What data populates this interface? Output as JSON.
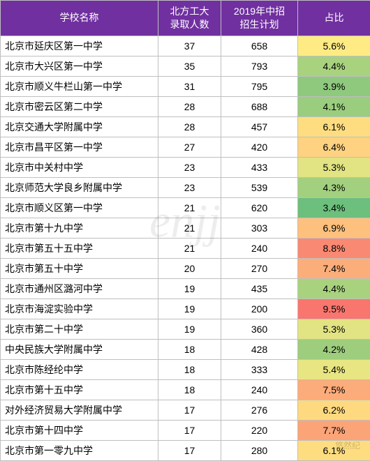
{
  "table": {
    "columns": [
      {
        "label": "学校名称",
        "class": "col-school"
      },
      {
        "label": "北方工大\n录取人数",
        "class": "col-admit"
      },
      {
        "label": "2019年中招\n招生计划",
        "class": "col-plan"
      },
      {
        "label": "占比",
        "class": "col-ratio"
      }
    ],
    "header_bg": "#7030a0",
    "header_color": "#ffffff",
    "border_color": "#bfbfbf",
    "rows": [
      {
        "school": "北京市延庆区第一中学",
        "admit": 37,
        "plan": 658,
        "ratio": "5.6%",
        "ratio_bg": "#ffeb84"
      },
      {
        "school": "北京市大兴区第一中学",
        "admit": 35,
        "plan": 793,
        "ratio": "4.4%",
        "ratio_bg": "#a9d27f"
      },
      {
        "school": "北京市顺义牛栏山第一中学",
        "admit": 31,
        "plan": 795,
        "ratio": "3.9%",
        "ratio_bg": "#8ec97d"
      },
      {
        "school": "北京市密云区第二中学",
        "admit": 28,
        "plan": 688,
        "ratio": "4.1%",
        "ratio_bg": "#9acd7e"
      },
      {
        "school": "北京交通大学附属中学",
        "admit": 28,
        "plan": 457,
        "ratio": "6.1%",
        "ratio_bg": "#fedd81"
      },
      {
        "school": "北京市昌平区第一中学",
        "admit": 27,
        "plan": 420,
        "ratio": "6.4%",
        "ratio_bg": "#fed280"
      },
      {
        "school": "北京市中关村中学",
        "admit": 23,
        "plan": 433,
        "ratio": "5.3%",
        "ratio_bg": "#e2e383"
      },
      {
        "school": "北京师范大学良乡附属中学",
        "admit": 23,
        "plan": 539,
        "ratio": "4.3%",
        "ratio_bg": "#a3d07f"
      },
      {
        "school": "北京市顺义区第一中学",
        "admit": 21,
        "plan": 620,
        "ratio": "3.4%",
        "ratio_bg": "#6cbf7c"
      },
      {
        "school": "北京市第十九中学",
        "admit": 21,
        "plan": 303,
        "ratio": "6.9%",
        "ratio_bg": "#fdc07d"
      },
      {
        "school": "北京市第五十五中学",
        "admit": 21,
        "plan": 240,
        "ratio": "8.8%",
        "ratio_bg": "#f98972"
      },
      {
        "school": "北京市第五十中学",
        "admit": 20,
        "plan": 270,
        "ratio": "7.4%",
        "ratio_bg": "#fcae7a"
      },
      {
        "school": "北京市通州区潞河中学",
        "admit": 19,
        "plan": 435,
        "ratio": "4.4%",
        "ratio_bg": "#a9d27f"
      },
      {
        "school": "北京市海淀实验中学",
        "admit": 19,
        "plan": 200,
        "ratio": "9.5%",
        "ratio_bg": "#f8766e"
      },
      {
        "school": "北京市第二十中学",
        "admit": 19,
        "plan": 360,
        "ratio": "5.3%",
        "ratio_bg": "#e2e383"
      },
      {
        "school": "中央民族大学附属中学",
        "admit": 18,
        "plan": 428,
        "ratio": "4.2%",
        "ratio_bg": "#9ecd7e"
      },
      {
        "school": "北京市陈经纶中学",
        "admit": 18,
        "plan": 333,
        "ratio": "5.4%",
        "ratio_bg": "#e8e683"
      },
      {
        "school": "北京市第十五中学",
        "admit": 18,
        "plan": 240,
        "ratio": "7.5%",
        "ratio_bg": "#fcab7a"
      },
      {
        "school": "对外经济贸易大学附属中学",
        "admit": 17,
        "plan": 276,
        "ratio": "6.2%",
        "ratio_bg": "#fed980"
      },
      {
        "school": "北京市第十四中学",
        "admit": 17,
        "plan": 220,
        "ratio": "7.7%",
        "ratio_bg": "#fba478"
      },
      {
        "school": "北京市第一零九中学",
        "admit": 17,
        "plan": 280,
        "ratio": "6.1%",
        "ratio_bg": "#fedd81"
      }
    ]
  },
  "watermark_main": "enjj",
  "watermark_corner": "悠然纪"
}
